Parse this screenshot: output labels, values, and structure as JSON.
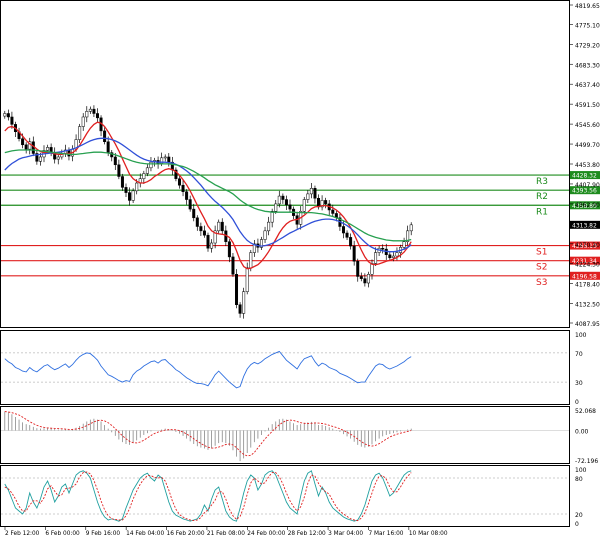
{
  "chart_data": {
    "type": "candlestick",
    "instrument_note": "",
    "x_tick_labels": [
      "2 Feb 12:00",
      "6 Feb 00:00",
      "9 Feb 16:00",
      "14 Feb 04:00",
      "16 Feb 20:00",
      "21 Feb 08:00",
      "24 Feb 00:00",
      "28 Feb 12:00",
      "3 Mar 04:00",
      "7 Mar 16:00",
      "10 Mar 08:00"
    ],
    "price_axis": {
      "ylim": [
        4087.95,
        4819.65
      ],
      "tick_labels": [
        "4819.65",
        "4775.10",
        "4729.20",
        "4683.30",
        "4637.40",
        "4591.50",
        "4545.60",
        "4499.70",
        "4453.80",
        "4407.90",
        "4362.00",
        "4316.10",
        "4270.20",
        "4224.30",
        "4178.40",
        "4132.50",
        "4087.95"
      ]
    },
    "current_price": {
      "value": "4313.82",
      "color": "#000000"
    },
    "levels": [
      {
        "name": "R3",
        "value": 4428.32,
        "label": "4428.32",
        "color": "#1e8c1e"
      },
      {
        "name": "R2",
        "value": 4393.56,
        "label": "4393.56",
        "color": "#1e8c1e"
      },
      {
        "name": "R1",
        "value": 4358.8,
        "label": "4358.80",
        "color": "#1e8c1e"
      },
      {
        "name": "S1",
        "value": 4266.1,
        "label": "4266.10",
        "color": "#e02020"
      },
      {
        "name": "S2",
        "value": 4231.34,
        "label": "4231.34",
        "color": "#e02020"
      },
      {
        "name": "S3",
        "value": 4196.58,
        "label": "4196.58",
        "color": "#e02020"
      }
    ],
    "candles_close": [
      4570,
      4562,
      4545,
      4528,
      4512,
      4498,
      4488,
      4505,
      4478,
      4460,
      4470,
      4485,
      4492,
      4480,
      4465,
      4470,
      4478,
      4486,
      4472,
      4488,
      4510,
      4540,
      4562,
      4575,
      4580,
      4570,
      4560,
      4530,
      4505,
      4480,
      4470,
      4452,
      4425,
      4400,
      4388,
      4370,
      4392,
      4410,
      4420,
      4432,
      4445,
      4458,
      4462,
      4455,
      4468,
      4470,
      4458,
      4440,
      4420,
      4405,
      4390,
      4372,
      4350,
      4330,
      4310,
      4300,
      4290,
      4260,
      4272,
      4300,
      4320,
      4300,
      4275,
      4240,
      4200,
      4130,
      4110,
      4160,
      4215,
      4250,
      4270,
      4262,
      4280,
      4300,
      4320,
      4345,
      4362,
      4380,
      4372,
      4360,
      4350,
      4335,
      4315,
      4345,
      4372,
      4385,
      4398,
      4375,
      4355,
      4370,
      4362,
      4348,
      4340,
      4330,
      4310,
      4295,
      4285,
      4265,
      4230,
      4195,
      4190,
      4180,
      4200,
      4225,
      4250,
      4260,
      4258,
      4245,
      4238,
      4242,
      4250,
      4262,
      4275,
      4300,
      4313.82
    ],
    "moving_averages": [
      {
        "color": "#e02020",
        "values": [
          4530,
          4538,
          4540,
          4536,
          4528,
          4518,
          4508,
          4500,
          4495,
          4488,
          4482,
          4480,
          4480,
          4479,
          4477,
          4476,
          4476,
          4478,
          4478,
          4480,
          4486,
          4497,
          4510,
          4524,
          4536,
          4545,
          4550,
          4548,
          4540,
          4528,
          4514,
          4500,
          4484,
          4466,
          4448,
          4430,
          4420,
          4414,
          4410,
          4410,
          4413,
          4418,
          4425,
          4430,
          4436,
          4441,
          4443,
          4441,
          4436,
          4428,
          4418,
          4406,
          4392,
          4376,
          4359,
          4343,
          4328,
          4311,
          4300,
          4295,
          4293,
          4292,
          4290,
          4285,
          4273,
          4254,
          4232,
          4218,
          4213,
          4214,
          4218,
          4222,
          4230,
          4240,
          4252,
          4266,
          4280,
          4295,
          4307,
          4316,
          4322,
          4325,
          4326,
          4330,
          4336,
          4343,
          4351,
          4355,
          4356,
          4358,
          4358,
          4356,
          4353,
          4348,
          4341,
          4332,
          4321,
          4308,
          4292,
          4274,
          4256,
          4240,
          4229,
          4223,
          4222,
          4224,
          4227,
          4230,
          4232,
          4235,
          4239,
          4244,
          4251,
          4262,
          4275
        ]
      },
      {
        "color": "#3050d8",
        "values": [
          4440,
          4448,
          4455,
          4460,
          4465,
          4468,
          4470,
          4472,
          4474,
          4475,
          4476,
          4477,
          4478,
          4479,
          4480,
          4481,
          4482,
          4484,
          4486,
          4488,
          4491,
          4495,
          4499,
          4503,
          4507,
          4510,
          4512,
          4513,
          4513,
          4512,
          4510,
          4507,
          4503,
          4498,
          4492,
          4486,
          4480,
          4474,
          4469,
          4465,
          4462,
          4460,
          4459,
          4458,
          4458,
          4458,
          4457,
          4456,
          4453,
          4449,
          4444,
          4438,
          4431,
          4423,
          4414,
          4405,
          4395,
          4385,
          4376,
          4368,
          4361,
          4354,
          4346,
          4337,
          4326,
          4312,
          4298,
          4287,
          4278,
          4272,
          4268,
          4266,
          4265,
          4266,
          4268,
          4271,
          4275,
          4280,
          4285,
          4290,
          4295,
          4299,
          4303,
          4307,
          4311,
          4315,
          4319,
          4322,
          4324,
          4326,
          4327,
          4327,
          4326,
          4324,
          4321,
          4317,
          4312,
          4306,
          4299,
          4291,
          4282,
          4274,
          4267,
          4262,
          4258,
          4256,
          4254,
          4253,
          4252,
          4252,
          4253,
          4255,
          4258,
          4262,
          4268
        ]
      },
      {
        "color": "#28a050",
        "values": [
          4480,
          4482,
          4484,
          4485,
          4486,
          4486,
          4486,
          4486,
          4486,
          4485,
          4484,
          4483,
          4482,
          4481,
          4480,
          4479,
          4478,
          4477,
          4476,
          4476,
          4476,
          4477,
          4478,
          4479,
          4480,
          4481,
          4481,
          4481,
          4480,
          4479,
          4477,
          4475,
          4472,
          4469,
          4466,
          4463,
          4460,
          4458,
          4456,
          4455,
          4454,
          4454,
          4454,
          4454,
          4454,
          4454,
          4454,
          4453,
          4452,
          4450,
          4448,
          4445,
          4441,
          4437,
          4432,
          4427,
          4422,
          4416,
          4411,
          4406,
          4402,
          4398,
          4394,
          4390,
          4385,
          4378,
          4371,
          4365,
          4360,
          4356,
          4352,
          4349,
          4347,
          4345,
          4344,
          4343,
          4343,
          4343,
          4343,
          4343,
          4343,
          4343,
          4342,
          4342,
          4342,
          4342,
          4342,
          4341,
          4340,
          4339,
          4337,
          4335,
          4333,
          4330,
          4327,
          4323,
          4319,
          4315,
          4310,
          4305,
          4300,
          4295,
          4291,
          4288,
          4285,
          4283,
          4281,
          4279,
          4278,
          4277,
          4277,
          4277,
          4277,
          4278,
          4280
        ]
      }
    ],
    "rsi_panel": {
      "tick_labels": [
        "100",
        "70",
        "30",
        "0"
      ],
      "values": [
        62,
        58,
        55,
        50,
        48,
        45,
        44,
        50,
        46,
        44,
        48,
        52,
        54,
        50,
        47,
        49,
        52,
        55,
        50,
        54,
        60,
        65,
        68,
        70,
        69,
        65,
        60,
        52,
        46,
        40,
        38,
        35,
        32,
        30,
        32,
        31,
        40,
        45,
        48,
        52,
        55,
        58,
        59,
        56,
        60,
        61,
        56,
        52,
        47,
        44,
        40,
        36,
        33,
        30,
        28,
        28,
        27,
        25,
        32,
        40,
        45,
        40,
        35,
        30,
        26,
        22,
        24,
        38,
        48,
        54,
        57,
        55,
        58,
        62,
        65,
        68,
        70,
        72,
        66,
        60,
        56,
        52,
        48,
        56,
        62,
        64,
        66,
        58,
        52,
        56,
        54,
        50,
        48,
        46,
        42,
        40,
        38,
        35,
        32,
        29,
        30,
        30,
        38,
        45,
        52,
        55,
        54,
        50,
        48,
        50,
        52,
        55,
        58,
        62,
        65
      ]
    },
    "macd_panel": {
      "tick_labels": [
        "52.068",
        "0.00",
        "-72.196"
      ],
      "histogram": [
        42,
        40,
        36,
        30,
        24,
        18,
        14,
        12,
        8,
        5,
        4,
        5,
        6,
        5,
        3,
        2,
        2,
        3,
        2,
        3,
        6,
        10,
        15,
        20,
        24,
        26,
        24,
        20,
        12,
        4,
        -4,
        -12,
        -20,
        -26,
        -30,
        -32,
        -28,
        -22,
        -16,
        -10,
        -6,
        -2,
        0,
        0,
        2,
        4,
        3,
        1,
        -3,
        -7,
        -12,
        -18,
        -24,
        -30,
        -35,
        -38,
        -40,
        -43,
        -40,
        -34,
        -28,
        -26,
        -28,
        -34,
        -44,
        -58,
        -68,
        -62,
        -50,
        -38,
        -26,
        -18,
        -10,
        -2,
        6,
        14,
        20,
        25,
        26,
        24,
        20,
        16,
        12,
        14,
        17,
        18,
        19,
        16,
        12,
        12,
        10,
        7,
        4,
        1,
        -3,
        -8,
        -13,
        -18,
        -25,
        -32,
        -36,
        -38,
        -36,
        -31,
        -24,
        -18,
        -13,
        -10,
        -8,
        -6,
        -4,
        -2,
        0,
        2,
        4
      ]
    },
    "stoch_panel": {
      "tick_labels": [
        "100",
        "80",
        "20",
        "0"
      ],
      "k_values": [
        70,
        60,
        45,
        30,
        25,
        20,
        30,
        55,
        40,
        30,
        45,
        65,
        75,
        60,
        40,
        50,
        65,
        70,
        55,
        70,
        85,
        90,
        92,
        88,
        80,
        60,
        40,
        25,
        15,
        10,
        12,
        10,
        8,
        12,
        30,
        45,
        60,
        70,
        80,
        85,
        88,
        80,
        75,
        85,
        80,
        60,
        40,
        25,
        18,
        15,
        12,
        10,
        8,
        10,
        12,
        20,
        35,
        25,
        45,
        60,
        65,
        45,
        25,
        15,
        10,
        8,
        30,
        55,
        75,
        85,
        80,
        60,
        70,
        85,
        90,
        92,
        85,
        70,
        55,
        40,
        30,
        25,
        20,
        50,
        75,
        88,
        92,
        70,
        50,
        65,
        55,
        40,
        30,
        25,
        20,
        15,
        12,
        10,
        8,
        10,
        20,
        35,
        55,
        75,
        85,
        88,
        80,
        65,
        50,
        55,
        65,
        75,
        85,
        90,
        92
      ],
      "d_values": [
        65,
        62,
        55,
        45,
        33,
        25,
        25,
        35,
        42,
        42,
        38,
        47,
        62,
        67,
        58,
        50,
        52,
        62,
        63,
        65,
        70,
        82,
        89,
        90,
        87,
        76,
        60,
        42,
        27,
        17,
        12,
        11,
        10,
        10,
        17,
        29,
        45,
        58,
        70,
        78,
        84,
        84,
        81,
        80,
        81,
        75,
        60,
        42,
        28,
        19,
        15,
        12,
        10,
        9,
        10,
        14,
        22,
        27,
        35,
        43,
        57,
        57,
        45,
        28,
        17,
        11,
        16,
        31,
        53,
        72,
        80,
        75,
        70,
        72,
        82,
        89,
        89,
        82,
        70,
        55,
        42,
        32,
        25,
        32,
        48,
        71,
        85,
        83,
        71,
        62,
        57,
        53,
        42,
        32,
        25,
        20,
        16,
        12,
        10,
        9,
        13,
        22,
        37,
        55,
        72,
        83,
        84,
        78,
        65,
        57,
        57,
        65,
        75,
        83,
        89
      ]
    }
  }
}
